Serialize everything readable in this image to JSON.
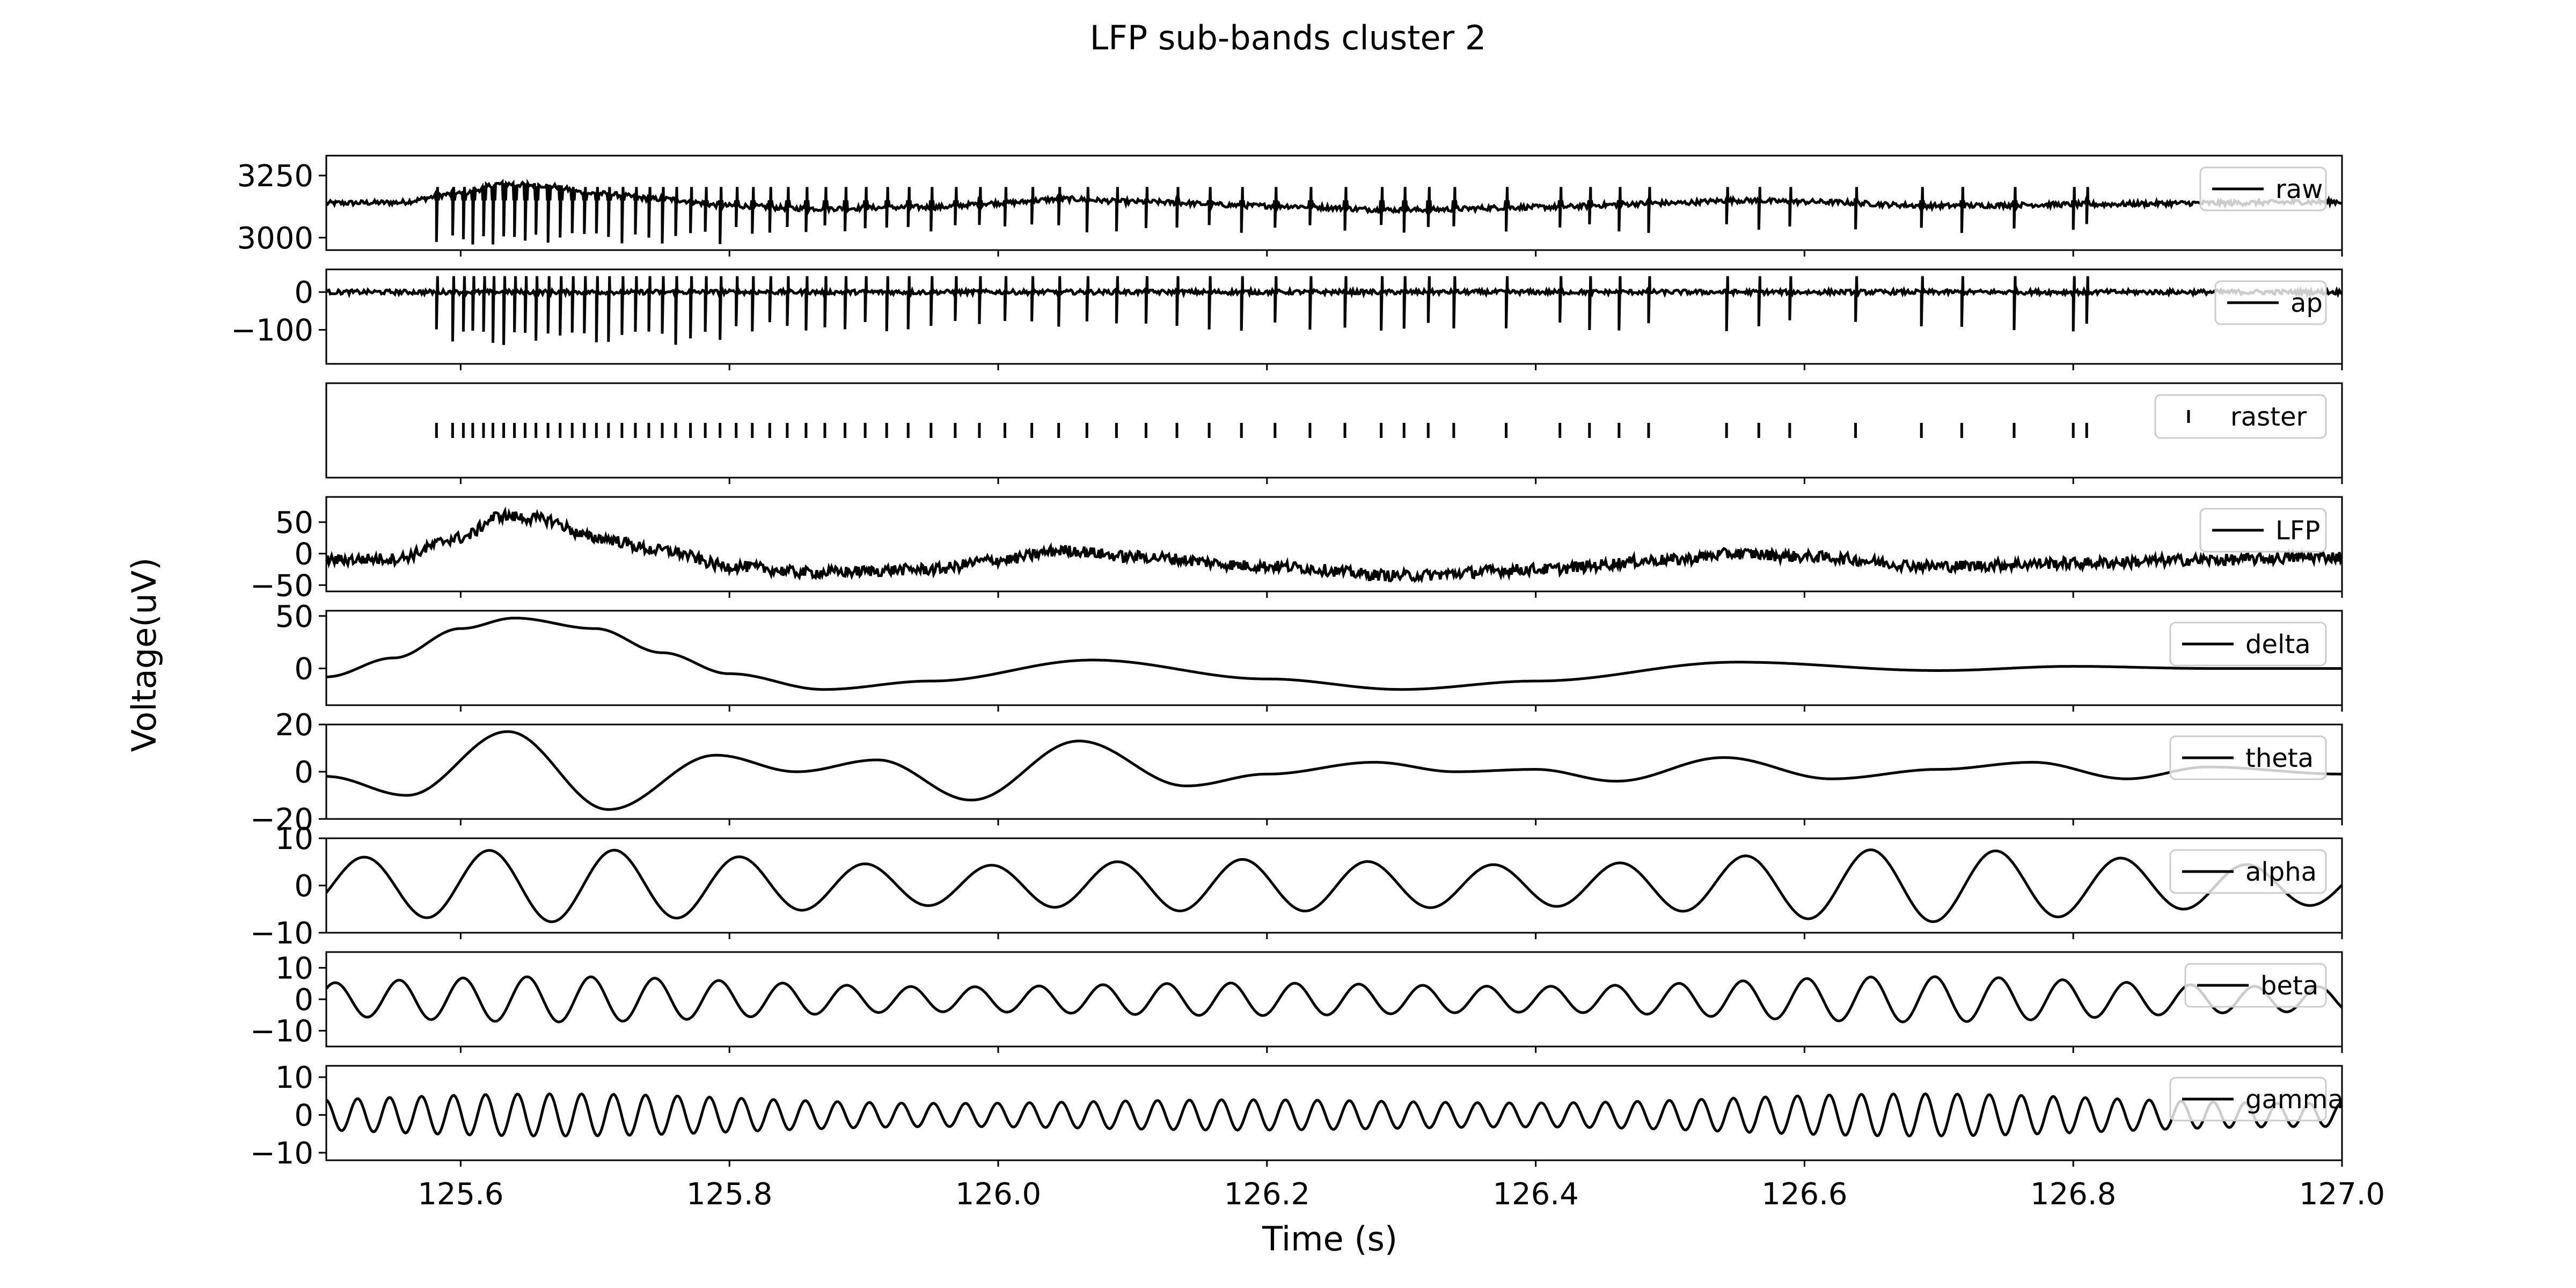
{
  "chart_data": {
    "type": "line",
    "title": "LFP sub-bands cluster 2",
    "xlabel": "Time (s)",
    "ylabel": "Voltage(uV)",
    "xlim": [
      125.5,
      127.0
    ],
    "xticks": [
      125.6,
      125.8,
      126.0,
      126.2,
      126.4,
      126.6,
      126.8,
      127.0
    ],
    "xtick_labels": [
      "125.6",
      "125.8",
      "126.0",
      "126.2",
      "126.4",
      "126.6",
      "126.8",
      "127.0"
    ],
    "legend_position": "right",
    "color": "#000000",
    "spike_times": [
      125.582,
      125.594,
      125.602,
      125.609,
      125.617,
      125.624,
      125.632,
      125.64,
      125.648,
      125.656,
      125.665,
      125.674,
      125.683,
      125.692,
      125.701,
      125.71,
      125.72,
      125.73,
      125.74,
      125.75,
      125.76,
      125.771,
      125.782,
      125.793,
      125.805,
      125.817,
      125.83,
      125.843,
      125.857,
      125.871,
      125.886,
      125.901,
      125.917,
      125.933,
      125.95,
      125.968,
      125.986,
      126.005,
      126.025,
      126.045,
      126.066,
      126.088,
      126.11,
      126.133,
      126.157,
      126.181,
      126.206,
      126.232,
      126.258,
      126.285,
      126.302,
      126.32,
      126.339,
      126.378,
      126.418,
      126.44,
      126.462,
      126.484,
      126.542,
      126.566,
      126.589,
      126.638,
      126.687,
      126.717,
      126.756,
      126.8,
      126.81
    ],
    "panels": [
      {
        "name": "raw",
        "ylim": [
          2950,
          3330
        ],
        "yticks": [
          3000,
          3250
        ],
        "ytick_labels": [
          "3000",
          "3250"
        ],
        "baseline": 3150,
        "spike_amp": 180,
        "noise": 10
      },
      {
        "name": "ap",
        "ylim": [
          -190,
          60
        ],
        "yticks": [
          -100,
          0
        ],
        "ytick_labels": [
          "−100",
          "0"
        ],
        "baseline": 0,
        "spike_amp": 140,
        "noise": 6
      },
      {
        "name": "raster",
        "ylim": [
          0,
          1
        ],
        "yticks": [],
        "ytick_labels": []
      },
      {
        "name": "LFP",
        "ylim": [
          -60,
          90
        ],
        "yticks": [
          -50,
          0,
          50
        ],
        "ytick_labels": [
          "−50",
          "0",
          "50"
        ]
      },
      {
        "name": "delta",
        "ylim": [
          -35,
          55
        ],
        "yticks": [
          0,
          50
        ],
        "ytick_labels": [
          "0",
          "50"
        ]
      },
      {
        "name": "theta",
        "ylim": [
          -20,
          20
        ],
        "yticks": [
          -20,
          0,
          20
        ],
        "ytick_labels": [
          "−20",
          "0",
          "20"
        ]
      },
      {
        "name": "alpha",
        "ylim": [
          -10,
          10
        ],
        "yticks": [
          -10,
          0,
          10
        ],
        "ytick_labels": [
          "−10",
          "0",
          "10"
        ]
      },
      {
        "name": "beta",
        "ylim": [
          -15,
          15
        ],
        "yticks": [
          -10,
          0,
          10
        ],
        "ytick_labels": [
          "−10",
          "0",
          "10"
        ]
      },
      {
        "name": "gamma",
        "ylim": [
          -12,
          13
        ],
        "yticks": [
          -10,
          0,
          10
        ],
        "ytick_labels": [
          "−10",
          "0",
          "10"
        ]
      }
    ],
    "band_series": {
      "delta": {
        "t": [
          125.5,
          125.55,
          125.6,
          125.64,
          125.7,
          125.75,
          125.8,
          125.87,
          125.95,
          126.07,
          126.2,
          126.3,
          126.4,
          126.55,
          126.7,
          126.8,
          126.9,
          127.0
        ],
        "v": [
          -8,
          10,
          38,
          48,
          38,
          15,
          -5,
          -20,
          -12,
          8,
          -10,
          -20,
          -12,
          6,
          -2,
          2,
          0,
          0
        ]
      },
      "theta": {
        "t": [
          125.5,
          125.56,
          125.635,
          125.71,
          125.79,
          125.85,
          125.91,
          125.98,
          126.06,
          126.14,
          126.2,
          126.28,
          126.34,
          126.4,
          126.46,
          126.54,
          126.62,
          126.7,
          126.77,
          126.84,
          126.9,
          127.0
        ],
        "v": [
          -2,
          -10,
          17,
          -16,
          7,
          0,
          5,
          -12,
          13,
          -6,
          -1,
          4,
          0,
          1,
          -4,
          6,
          -3,
          1,
          4,
          -3,
          2,
          -1
        ]
      },
      "alpha": {
        "freq": 10.7,
        "amp": 4.8
      },
      "beta": {
        "freq": 21,
        "amp": 4.5
      },
      "gamma": {
        "freq": 42,
        "amp": 3.5
      },
      "LFP": {
        "t": [
          125.5,
          125.55,
          125.6,
          125.63,
          125.66,
          125.7,
          125.75,
          125.8,
          125.86,
          125.95,
          126.0,
          126.05,
          126.1,
          126.2,
          126.3,
          126.4,
          126.5,
          126.55,
          126.6,
          126.7,
          126.8,
          126.9,
          127.0
        ],
        "v": [
          -10,
          -8,
          25,
          60,
          55,
          25,
          5,
          -20,
          -30,
          -25,
          -10,
          5,
          -5,
          -20,
          -35,
          -25,
          -10,
          0,
          -5,
          -20,
          -15,
          -10,
          -5
        ]
      }
    }
  }
}
